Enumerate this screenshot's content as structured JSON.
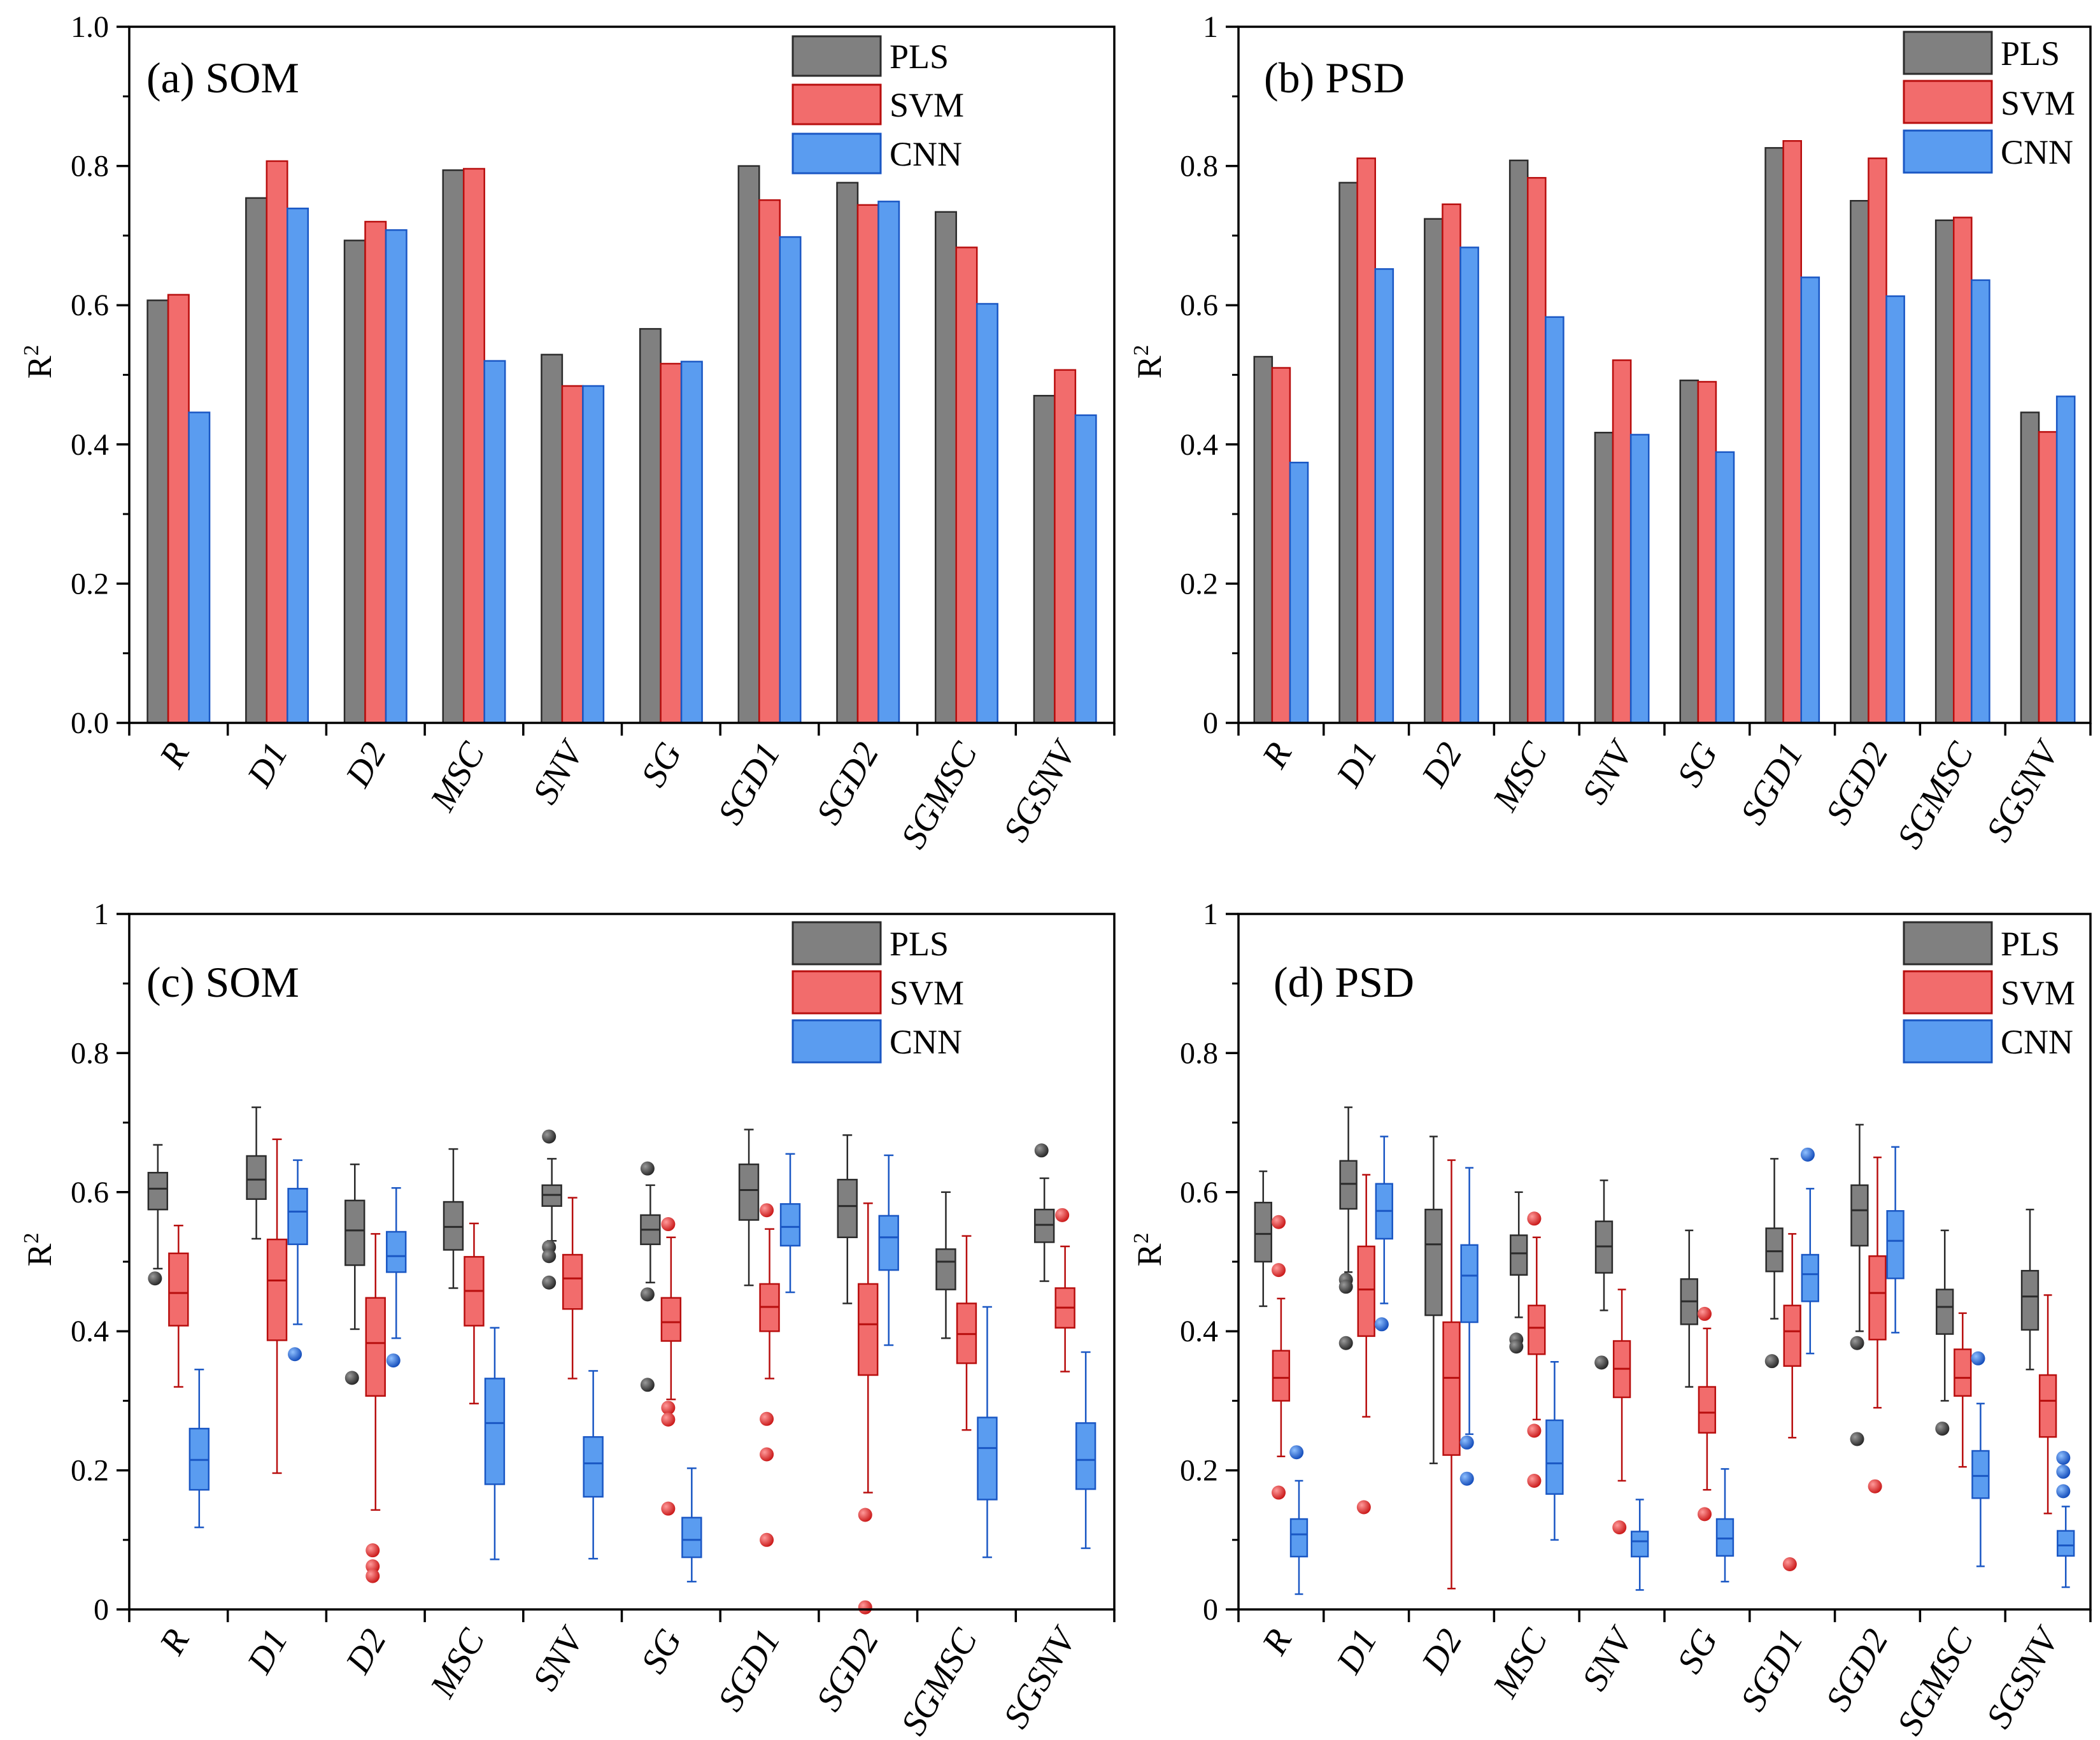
{
  "colors": {
    "PLS": {
      "fill": "#808080",
      "stroke": "#2b2b2b",
      "dark": "#333333"
    },
    "SVM": {
      "fill": "#f26c6c",
      "stroke": "#b80e0e",
      "dark": "#e12a2a"
    },
    "CNN": {
      "fill": "#5a9cf0",
      "stroke": "#1a57c4",
      "dark": "#1f5ed0"
    }
  },
  "chart_data": [
    {
      "id": "a",
      "type": "bar",
      "title": "(a) SOM",
      "ylabel": "R",
      "ylabel_sup": "2",
      "ylim": [
        0,
        1
      ],
      "yticks": [
        "0.0",
        "0.2",
        "0.4",
        "0.6",
        "0.8",
        "1.0"
      ],
      "legend": [
        "PLS",
        "SVM",
        "CNN"
      ],
      "legend_position": "top-right",
      "categories": [
        "R",
        "D1",
        "D2",
        "MSC",
        "SNV",
        "SG",
        "SGD1",
        "SGD2",
        "SGMSC",
        "SGSNV"
      ],
      "series": [
        {
          "name": "PLS",
          "values": [
            0.607,
            0.754,
            0.693,
            0.794,
            0.529,
            0.566,
            0.8,
            0.776,
            0.734,
            0.47
          ]
        },
        {
          "name": "SVM",
          "values": [
            0.615,
            0.807,
            0.72,
            0.796,
            0.484,
            0.516,
            0.751,
            0.744,
            0.683,
            0.507
          ]
        },
        {
          "name": "CNN",
          "values": [
            0.446,
            0.739,
            0.708,
            0.52,
            0.484,
            0.519,
            0.698,
            0.749,
            0.602,
            0.442
          ]
        }
      ]
    },
    {
      "id": "b",
      "type": "bar",
      "title": "(b) PSD",
      "ylabel": "R",
      "ylabel_sup": "2",
      "ylim": [
        0,
        1
      ],
      "yticks": [
        "0",
        "0.2",
        "0.4",
        "0.6",
        "0.8",
        "1"
      ],
      "legend": [
        "PLS",
        "SVM",
        "CNN"
      ],
      "legend_position": "top-right",
      "categories": [
        "R",
        "D1",
        "D2",
        "MSC",
        "SNV",
        "SG",
        "SGD1",
        "SGD2",
        "SGMSC",
        "SGSNV"
      ],
      "series": [
        {
          "name": "PLS",
          "values": [
            0.526,
            0.776,
            0.724,
            0.808,
            0.417,
            0.492,
            0.826,
            0.75,
            0.722,
            0.446
          ]
        },
        {
          "name": "SVM",
          "values": [
            0.51,
            0.811,
            0.745,
            0.783,
            0.521,
            0.49,
            0.836,
            0.811,
            0.726,
            0.418
          ]
        },
        {
          "name": "CNN",
          "values": [
            0.374,
            0.652,
            0.683,
            0.583,
            0.414,
            0.389,
            0.64,
            0.613,
            0.636,
            0.469
          ]
        }
      ]
    },
    {
      "id": "c",
      "type": "box",
      "title": "(c) SOM",
      "ylabel": "R",
      "ylabel_sup": "2",
      "ylim": [
        0,
        1
      ],
      "yticks": [
        "0",
        "0.2",
        "0.4",
        "0.6",
        "0.8",
        "1"
      ],
      "legend": [
        "PLS",
        "SVM",
        "CNN"
      ],
      "legend_position": "top-right",
      "categories": [
        "R",
        "D1",
        "D2",
        "MSC",
        "SNV",
        "SG",
        "SGD1",
        "SGD2",
        "SGMSC",
        "SGSNV"
      ],
      "series": [
        {
          "name": "PLS",
          "boxes": [
            {
              "whislo": 0.49,
              "q1": 0.575,
              "med": 0.605,
              "q3": 0.628,
              "whishi": 0.668,
              "fliers": [
                0.476
              ]
            },
            {
              "whislo": 0.533,
              "q1": 0.59,
              "med": 0.618,
              "q3": 0.652,
              "whishi": 0.722,
              "fliers": []
            },
            {
              "whislo": 0.403,
              "q1": 0.495,
              "med": 0.545,
              "q3": 0.588,
              "whishi": 0.64,
              "fliers": [
                0.333
              ]
            },
            {
              "whislo": 0.462,
              "q1": 0.517,
              "med": 0.55,
              "q3": 0.586,
              "whishi": 0.662,
              "fliers": []
            },
            {
              "whislo": 0.53,
              "q1": 0.58,
              "med": 0.596,
              "q3": 0.61,
              "whishi": 0.648,
              "fliers": [
                0.68,
                0.521,
                0.508,
                0.47
              ]
            },
            {
              "whislo": 0.47,
              "q1": 0.525,
              "med": 0.546,
              "q3": 0.567,
              "whishi": 0.61,
              "fliers": [
                0.634,
                0.453,
                0.323
              ]
            },
            {
              "whislo": 0.466,
              "q1": 0.56,
              "med": 0.603,
              "q3": 0.64,
              "whishi": 0.69,
              "fliers": []
            },
            {
              "whislo": 0.44,
              "q1": 0.535,
              "med": 0.58,
              "q3": 0.618,
              "whishi": 0.682,
              "fliers": []
            },
            {
              "whislo": 0.39,
              "q1": 0.46,
              "med": 0.5,
              "q3": 0.518,
              "whishi": 0.6,
              "fliers": []
            },
            {
              "whislo": 0.472,
              "q1": 0.528,
              "med": 0.553,
              "q3": 0.575,
              "whishi": 0.62,
              "fliers": [
                0.66
              ]
            }
          ]
        },
        {
          "name": "SVM",
          "boxes": [
            {
              "whislo": 0.32,
              "q1": 0.408,
              "med": 0.455,
              "q3": 0.512,
              "whishi": 0.552,
              "fliers": []
            },
            {
              "whislo": 0.196,
              "q1": 0.387,
              "med": 0.473,
              "q3": 0.532,
              "whishi": 0.676,
              "fliers": []
            },
            {
              "whislo": 0.143,
              "q1": 0.307,
              "med": 0.383,
              "q3": 0.448,
              "whishi": 0.54,
              "fliers": [
                0.085,
                0.062,
                0.048
              ]
            },
            {
              "whislo": 0.296,
              "q1": 0.408,
              "med": 0.458,
              "q3": 0.507,
              "whishi": 0.555,
              "fliers": []
            },
            {
              "whislo": 0.332,
              "q1": 0.432,
              "med": 0.476,
              "q3": 0.51,
              "whishi": 0.592,
              "fliers": []
            },
            {
              "whislo": 0.302,
              "q1": 0.386,
              "med": 0.413,
              "q3": 0.448,
              "whishi": 0.535,
              "fliers": [
                0.554,
                0.29,
                0.273,
                0.145
              ]
            },
            {
              "whislo": 0.332,
              "q1": 0.4,
              "med": 0.435,
              "q3": 0.468,
              "whishi": 0.547,
              "fliers": [
                0.574,
                0.274,
                0.223,
                0.1
              ]
            },
            {
              "whislo": 0.168,
              "q1": 0.337,
              "med": 0.41,
              "q3": 0.468,
              "whishi": 0.584,
              "fliers": [
                0.136,
                0.003
              ]
            },
            {
              "whislo": 0.258,
              "q1": 0.354,
              "med": 0.396,
              "q3": 0.44,
              "whishi": 0.537,
              "fliers": []
            },
            {
              "whislo": 0.342,
              "q1": 0.405,
              "med": 0.434,
              "q3": 0.462,
              "whishi": 0.522,
              "fliers": [
                0.567
              ]
            }
          ]
        },
        {
          "name": "CNN",
          "boxes": [
            {
              "whislo": 0.118,
              "q1": 0.172,
              "med": 0.215,
              "q3": 0.26,
              "whishi": 0.345,
              "fliers": []
            },
            {
              "whislo": 0.41,
              "q1": 0.525,
              "med": 0.572,
              "q3": 0.605,
              "whishi": 0.646,
              "fliers": [
                0.367
              ]
            },
            {
              "whislo": 0.39,
              "q1": 0.485,
              "med": 0.508,
              "q3": 0.543,
              "whishi": 0.606,
              "fliers": [
                0.358
              ]
            },
            {
              "whislo": 0.072,
              "q1": 0.18,
              "med": 0.268,
              "q3": 0.332,
              "whishi": 0.405,
              "fliers": []
            },
            {
              "whislo": 0.073,
              "q1": 0.162,
              "med": 0.21,
              "q3": 0.248,
              "whishi": 0.343,
              "fliers": []
            },
            {
              "whislo": 0.04,
              "q1": 0.075,
              "med": 0.1,
              "q3": 0.132,
              "whishi": 0.203,
              "fliers": []
            },
            {
              "whislo": 0.456,
              "q1": 0.523,
              "med": 0.55,
              "q3": 0.583,
              "whishi": 0.655,
              "fliers": []
            },
            {
              "whislo": 0.38,
              "q1": 0.488,
              "med": 0.535,
              "q3": 0.566,
              "whishi": 0.653,
              "fliers": []
            },
            {
              "whislo": 0.075,
              "q1": 0.158,
              "med": 0.232,
              "q3": 0.276,
              "whishi": 0.435,
              "fliers": []
            },
            {
              "whislo": 0.088,
              "q1": 0.173,
              "med": 0.215,
              "q3": 0.268,
              "whishi": 0.37,
              "fliers": []
            }
          ]
        }
      ]
    },
    {
      "id": "d",
      "type": "box",
      "title": "(d) PSD",
      "ylabel": "R",
      "ylabel_sup": "2",
      "ylim": [
        0,
        1
      ],
      "yticks": [
        "0",
        "0.2",
        "0.4",
        "0.6",
        "0.8",
        "1"
      ],
      "legend": [
        "PLS",
        "SVM",
        "CNN"
      ],
      "legend_position": "top-right",
      "categories": [
        "R",
        "D1",
        "D2",
        "MSC",
        "SNV",
        "SG",
        "SGD1",
        "SGD2",
        "SGMSC",
        "SGSNV"
      ],
      "series": [
        {
          "name": "PLS",
          "boxes": [
            {
              "whislo": 0.436,
              "q1": 0.5,
              "med": 0.54,
              "q3": 0.585,
              "whishi": 0.63,
              "fliers": []
            },
            {
              "whislo": 0.485,
              "q1": 0.576,
              "med": 0.612,
              "q3": 0.645,
              "whishi": 0.722,
              "fliers": [
                0.474,
                0.464,
                0.383
              ]
            },
            {
              "whislo": 0.21,
              "q1": 0.423,
              "med": 0.525,
              "q3": 0.575,
              "whishi": 0.68,
              "fliers": []
            },
            {
              "whislo": 0.42,
              "q1": 0.481,
              "med": 0.512,
              "q3": 0.538,
              "whishi": 0.6,
              "fliers": [
                0.388,
                0.378
              ]
            },
            {
              "whislo": 0.43,
              "q1": 0.484,
              "med": 0.522,
              "q3": 0.558,
              "whishi": 0.617,
              "fliers": [
                0.355
              ]
            },
            {
              "whislo": 0.32,
              "q1": 0.41,
              "med": 0.443,
              "q3": 0.475,
              "whishi": 0.545,
              "fliers": []
            },
            {
              "whislo": 0.418,
              "q1": 0.486,
              "med": 0.515,
              "q3": 0.548,
              "whishi": 0.648,
              "fliers": [
                0.357
              ]
            },
            {
              "whislo": 0.4,
              "q1": 0.523,
              "med": 0.574,
              "q3": 0.61,
              "whishi": 0.697,
              "fliers": [
                0.383,
                0.245
              ]
            },
            {
              "whislo": 0.3,
              "q1": 0.396,
              "med": 0.435,
              "q3": 0.46,
              "whishi": 0.545,
              "fliers": [
                0.26
              ]
            },
            {
              "whislo": 0.345,
              "q1": 0.402,
              "med": 0.45,
              "q3": 0.487,
              "whishi": 0.575,
              "fliers": []
            }
          ]
        },
        {
          "name": "SVM",
          "boxes": [
            {
              "whislo": 0.22,
              "q1": 0.3,
              "med": 0.333,
              "q3": 0.372,
              "whishi": 0.447,
              "fliers": [
                0.557,
                0.488,
                0.168
              ]
            },
            {
              "whislo": 0.277,
              "q1": 0.393,
              "med": 0.46,
              "q3": 0.522,
              "whishi": 0.625,
              "fliers": [
                0.147
              ]
            },
            {
              "whislo": 0.03,
              "q1": 0.222,
              "med": 0.333,
              "q3": 0.413,
              "whishi": 0.646,
              "fliers": []
            },
            {
              "whislo": 0.273,
              "q1": 0.367,
              "med": 0.405,
              "q3": 0.437,
              "whishi": 0.535,
              "fliers": [
                0.562,
                0.257,
                0.185
              ]
            },
            {
              "whislo": 0.185,
              "q1": 0.305,
              "med": 0.346,
              "q3": 0.386,
              "whishi": 0.46,
              "fliers": [
                0.118
              ]
            },
            {
              "whislo": 0.172,
              "q1": 0.254,
              "med": 0.283,
              "q3": 0.32,
              "whishi": 0.404,
              "fliers": [
                0.425,
                0.137
              ]
            },
            {
              "whislo": 0.247,
              "q1": 0.35,
              "med": 0.4,
              "q3": 0.437,
              "whishi": 0.54,
              "fliers": [
                0.065
              ]
            },
            {
              "whislo": 0.29,
              "q1": 0.388,
              "med": 0.455,
              "q3": 0.508,
              "whishi": 0.65,
              "fliers": [
                0.177
              ]
            },
            {
              "whislo": 0.205,
              "q1": 0.307,
              "med": 0.333,
              "q3": 0.374,
              "whishi": 0.426,
              "fliers": []
            },
            {
              "whislo": 0.138,
              "q1": 0.248,
              "med": 0.3,
              "q3": 0.337,
              "whishi": 0.452,
              "fliers": []
            }
          ]
        },
        {
          "name": "CNN",
          "boxes": [
            {
              "whislo": 0.022,
              "q1": 0.076,
              "med": 0.108,
              "q3": 0.13,
              "whishi": 0.185,
              "fliers": [
                0.226
              ]
            },
            {
              "whislo": 0.44,
              "q1": 0.533,
              "med": 0.573,
              "q3": 0.612,
              "whishi": 0.68,
              "fliers": [
                0.41
              ]
            },
            {
              "whislo": 0.252,
              "q1": 0.413,
              "med": 0.48,
              "q3": 0.524,
              "whishi": 0.635,
              "fliers": [
                0.24,
                0.188
              ]
            },
            {
              "whislo": 0.1,
              "q1": 0.166,
              "med": 0.21,
              "q3": 0.272,
              "whishi": 0.356,
              "fliers": []
            },
            {
              "whislo": 0.028,
              "q1": 0.076,
              "med": 0.098,
              "q3": 0.112,
              "whishi": 0.158,
              "fliers": []
            },
            {
              "whislo": 0.04,
              "q1": 0.077,
              "med": 0.102,
              "q3": 0.13,
              "whishi": 0.202,
              "fliers": []
            },
            {
              "whislo": 0.368,
              "q1": 0.443,
              "med": 0.482,
              "q3": 0.51,
              "whishi": 0.605,
              "fliers": [
                0.654
              ]
            },
            {
              "whislo": 0.398,
              "q1": 0.476,
              "med": 0.53,
              "q3": 0.573,
              "whishi": 0.665,
              "fliers": []
            },
            {
              "whislo": 0.062,
              "q1": 0.16,
              "med": 0.192,
              "q3": 0.228,
              "whishi": 0.296,
              "fliers": [
                0.361
              ]
            },
            {
              "whislo": 0.032,
              "q1": 0.077,
              "med": 0.092,
              "q3": 0.113,
              "whishi": 0.148,
              "fliers": [
                0.218,
                0.198,
                0.17
              ]
            }
          ]
        }
      ]
    }
  ]
}
